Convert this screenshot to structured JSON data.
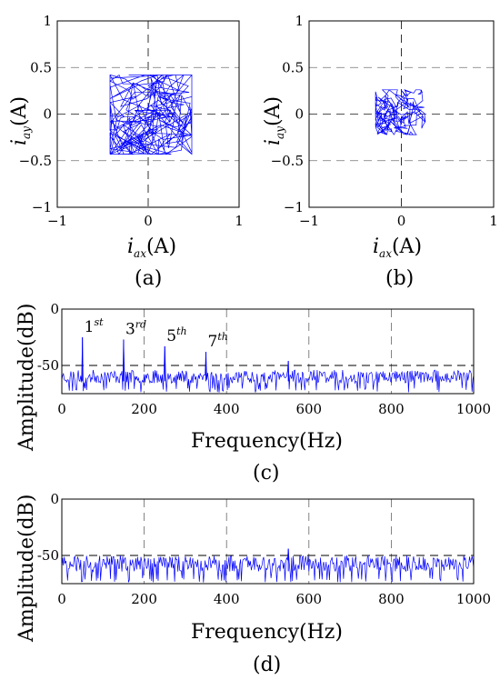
{
  "chart_data": [
    {
      "id": "a",
      "type": "scatter",
      "caption": "(a)",
      "xlabel": {
        "var": "i",
        "sub": "ax",
        "unit": "(A)"
      },
      "ylabel": {
        "var": "i",
        "sub": "ay",
        "unit": "(A)"
      },
      "xlim": [
        -1,
        1
      ],
      "ylim": [
        -1,
        1
      ],
      "xticks": [
        "−1",
        "0",
        "1"
      ],
      "yticks": [
        "1",
        "0.5",
        "0",
        "−0.5",
        "−1"
      ],
      "gridlines": [
        -0.5,
        0,
        0.5
      ],
      "series_color": "#0000ff",
      "trajectory_extent": {
        "x": [
          -0.42,
          0.48
        ],
        "y": [
          -0.43,
          0.42
        ]
      }
    },
    {
      "id": "b",
      "type": "scatter",
      "caption": "(b)",
      "xlabel": {
        "var": "i",
        "sub": "ax",
        "unit": "(A)"
      },
      "ylabel": {
        "var": "i",
        "sub": "ay",
        "unit": "(A)"
      },
      "xlim": [
        -1,
        1
      ],
      "ylim": [
        -1,
        1
      ],
      "xticks": [
        "−1",
        "0",
        "1"
      ],
      "yticks": [
        "1",
        "0.5",
        "0",
        "−0.5",
        "−1"
      ],
      "gridlines": [
        -0.5,
        0,
        0.5
      ],
      "series_color": "#0000ff",
      "trajectory_extent": {
        "x": [
          -0.28,
          0.26
        ],
        "y": [
          -0.22,
          0.26
        ]
      }
    },
    {
      "id": "c",
      "type": "line",
      "caption": "(c)",
      "xlabel": "Frequency(Hz)",
      "ylabel": "Amplitude(dB)",
      "xlim": [
        0,
        1000
      ],
      "ylim": [
        -75,
        0
      ],
      "xticks": [
        "0",
        "200",
        "400",
        "600",
        "800",
        "1000"
      ],
      "yticks": [
        "0",
        "-50"
      ],
      "noise_floor_db": [
        -72,
        -54
      ],
      "peaks": [
        {
          "freq": 50,
          "db": -25
        },
        {
          "freq": 150,
          "db": -27
        },
        {
          "freq": 250,
          "db": -33
        },
        {
          "freq": 350,
          "db": -38
        },
        {
          "freq": 550,
          "db": -46
        }
      ],
      "annotations": [
        {
          "base": "1",
          "sup": "st",
          "freq": 50
        },
        {
          "base": "3",
          "sup": "rd",
          "freq": 150
        },
        {
          "base": "5",
          "sup": "th",
          "freq": 250
        },
        {
          "base": "7",
          "sup": "th",
          "freq": 350
        }
      ],
      "series_color": "#0000ff"
    },
    {
      "id": "d",
      "type": "line",
      "caption": "(d)",
      "xlabel": "Frequency(Hz)",
      "ylabel": "Amplitude(dB)",
      "xlim": [
        0,
        1000
      ],
      "ylim": [
        -75,
        0
      ],
      "xticks": [
        "0",
        "200",
        "400",
        "600",
        "800",
        "1000"
      ],
      "yticks": [
        "0",
        "-50"
      ],
      "noise_floor_db": [
        -72,
        -50
      ],
      "peaks": [
        {
          "freq": 550,
          "db": -44
        }
      ],
      "series_color": "#0000ff"
    }
  ]
}
